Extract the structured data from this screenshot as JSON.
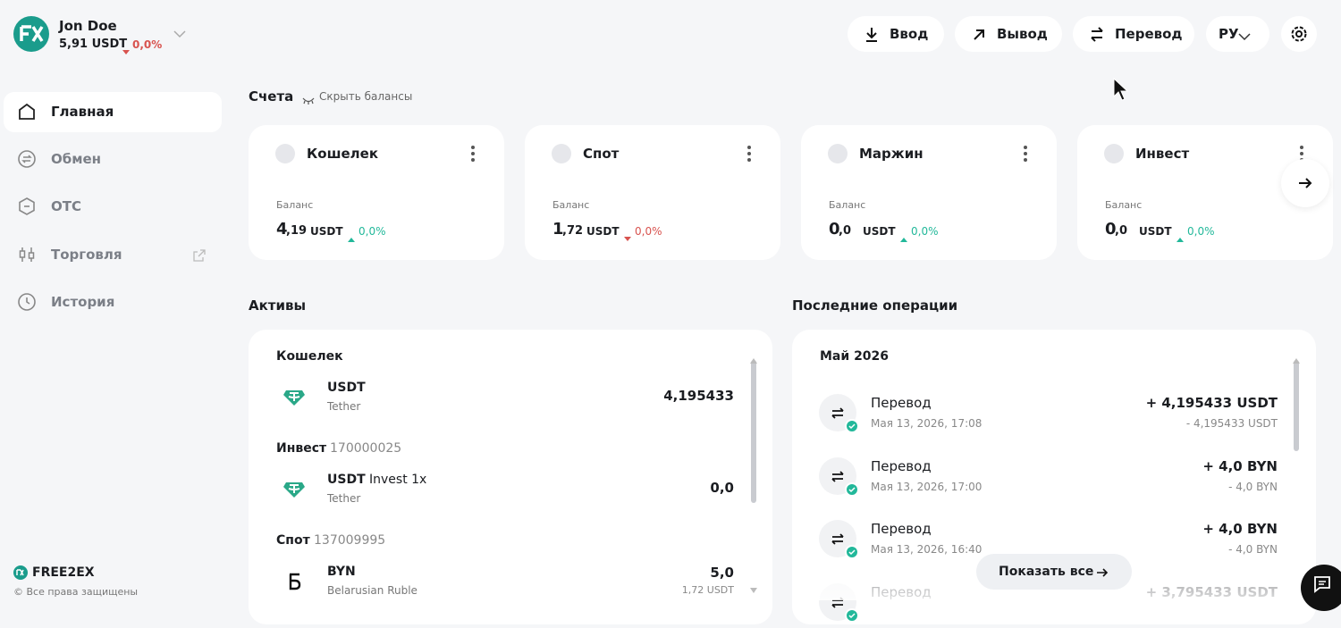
{
  "header": {
    "user_name": "Jon Doe",
    "balance": "5,91 USDT",
    "change": "0,0%",
    "trend": "down",
    "buttons": [
      "Ввод",
      "Вывод",
      "Перевод"
    ],
    "language": "РУ"
  },
  "sidebar": {
    "items": [
      {
        "label": "Главная",
        "active": true
      },
      {
        "label": "Обмен",
        "active": false
      },
      {
        "label": "ОТС",
        "active": false
      },
      {
        "label": "Торговля",
        "active": false
      },
      {
        "label": "История",
        "active": false
      }
    ],
    "brand": "FREE2EX",
    "copyright": "© Все права защищены"
  },
  "accounts": {
    "title": "Счета",
    "hide_label": "Скрыть балансы",
    "cards": [
      {
        "name": "Кошелек",
        "balance_label": "Баланс",
        "amount_int": "4",
        "amount_frac": ",19",
        "unit": "USDT",
        "change": "0,0%",
        "trend": "up"
      },
      {
        "name": "Спот",
        "balance_label": "Баланс",
        "amount_int": "1",
        "amount_frac": ",72",
        "unit": "USDT",
        "change": "0,0%",
        "trend": "down"
      },
      {
        "name": "Маржин",
        "balance_label": "Баланс",
        "amount_int": "0",
        "amount_frac": ",0",
        "unit": "USDT",
        "change": "0,0%",
        "trend": "up"
      },
      {
        "name": "Инвест",
        "balance_label": "Баланс",
        "amount_int": "0",
        "amount_frac": ",0",
        "unit": "USDT",
        "change": "0,0%",
        "trend": "up"
      }
    ]
  },
  "assets": {
    "title": "Активы",
    "groups": [
      {
        "title": "Кошелек",
        "items": [
          {
            "symbol": "USDT",
            "name": "Tether",
            "amount": "4,195433"
          }
        ]
      },
      {
        "title": "Инвест",
        "id": "170000025",
        "items": [
          {
            "symbol": "USDT",
            "symbol_suffix": "Invest 1x",
            "name": "Tether",
            "amount": "0,0"
          }
        ]
      },
      {
        "title": "Спот",
        "id": "137009995",
        "items": [
          {
            "symbol": "BYN",
            "name": "Belarusian Ruble",
            "amount": "5,0",
            "sub_amount": "1,72 USDT"
          }
        ]
      }
    ]
  },
  "operations": {
    "title": "Последние операции",
    "month": "Май 2026",
    "items": [
      {
        "title": "Перевод",
        "date": "Мая 13, 2026, 17:08",
        "amount_in": "+ 4,195433 USDT",
        "amount_out": "- 4,195433 USDT"
      },
      {
        "title": "Перевод",
        "date": "Мая 13, 2026, 17:00",
        "amount_in": "+ 4,0 BYN",
        "amount_out": "- 4,0 BYN"
      },
      {
        "title": "Перевод",
        "date": "Мая 13, 2026, 16:40",
        "amount_in": "+ 4,0 BYN",
        "amount_out": "- 4,0 BYN"
      },
      {
        "title": "Перевод",
        "amount_in": "+ 3,795433 USDT"
      }
    ],
    "show_all": "Показать все"
  }
}
